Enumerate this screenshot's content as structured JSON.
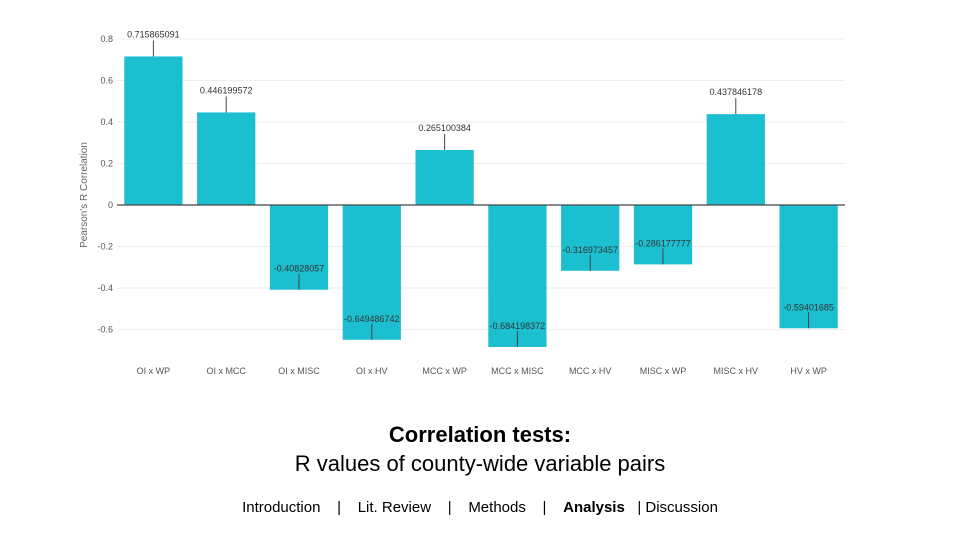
{
  "chart_data": {
    "type": "bar",
    "categories": [
      "OI x WP",
      "OI x MCC",
      "OI x MISC",
      "OI x HV",
      "MCC x WP",
      "MCC x MISC",
      "MCC x HV",
      "MISC x WP",
      "MISC x HV",
      "HV x WP"
    ],
    "values": [
      0.715865091,
      0.446199572,
      -0.40828057,
      -0.649486742,
      0.265100384,
      -0.684198372,
      -0.316973457,
      -0.286177777,
      0.437846178,
      -0.59401685
    ],
    "data_labels": [
      "0.715865091",
      "0.446199572",
      "-0.40828057",
      "-0.649486742",
      "0.265100384",
      "-0.684198372",
      "-0.316973457",
      "-0.286177777",
      "0.437846178",
      "-0.59401685"
    ],
    "ylabel": "Pearson's R Correlation",
    "xlabel": "",
    "ylim": [
      -0.7,
      0.8
    ],
    "yticks": [
      0.8,
      0.6,
      0.4,
      0.2,
      0,
      -0.2,
      -0.4,
      -0.6
    ],
    "ytick_labels": [
      "0.8",
      "0.6",
      "0.4",
      "0.2",
      "0",
      "-0.2",
      "-0.4",
      "-0.6"
    ],
    "grid": true,
    "bar_color": "#1bbfd0"
  },
  "caption": {
    "title": "Correlation tests:",
    "subtitle": "R values of county-wide variable pairs"
  },
  "nav": {
    "items": [
      {
        "label": "Introduction",
        "active": false
      },
      {
        "label": "Lit. Review",
        "active": false
      },
      {
        "label": "Methods",
        "active": false
      },
      {
        "label": "Analysis",
        "active": true
      },
      {
        "label": "Discussion",
        "active": false
      }
    ],
    "separator": "|"
  }
}
